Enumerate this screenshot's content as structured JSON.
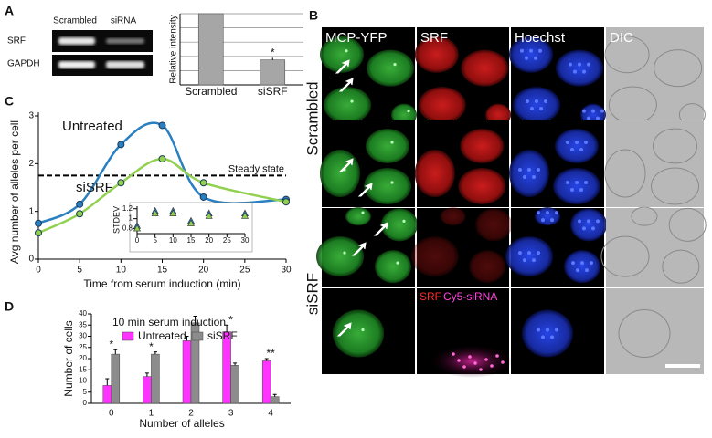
{
  "panels": {
    "a": "A",
    "b": "B",
    "c": "C",
    "d": "D"
  },
  "gel": {
    "lanes": [
      "Scrambled",
      "siRNA"
    ],
    "rows": [
      "SRF",
      "GAPDH"
    ]
  },
  "microscopy": {
    "columns": [
      "MCP-YFP",
      "SRF",
      "Hoechst",
      "DIC"
    ],
    "rows": [
      "Scrambled",
      "siSRF"
    ],
    "overlay": [
      "SRF",
      "Cy5-siRNA"
    ]
  },
  "chart_data": [
    {
      "type": "bar",
      "ylabel": "Relative intensity",
      "categories": [
        "Scrambled",
        "siSRF"
      ],
      "values": [
        100,
        35
      ],
      "errors": [
        0,
        3
      ],
      "color": "#a6a6a6",
      "ylim": [
        0,
        100
      ],
      "yticks": [
        0,
        20,
        40,
        60,
        80,
        100
      ],
      "ytick_labels": false,
      "grid": true,
      "stars": [
        null,
        "*"
      ]
    },
    {
      "type": "line",
      "xlabel": "Time from serum induction (min)",
      "ylabel": "Avg number of alleles per cell",
      "x": [
        0,
        5,
        10,
        15,
        20,
        30
      ],
      "series": [
        {
          "name": "Untreated",
          "color": "#2a7fc1",
          "values": [
            0.75,
            1.15,
            2.4,
            2.8,
            1.3,
            1.25
          ]
        },
        {
          "name": "siSRF",
          "color": "#92d050",
          "values": [
            0.55,
            0.95,
            1.6,
            2.1,
            1.6,
            1.2
          ]
        }
      ],
      "xlim": [
        0,
        30
      ],
      "xticks": [
        0,
        5,
        10,
        15,
        20,
        25,
        30
      ],
      "ylim": [
        0,
        3
      ],
      "yticks": [
        0,
        1,
        2,
        3
      ],
      "smooth": true,
      "legend": "inline",
      "reference_line": {
        "label": "Steady state",
        "value": 1.75
      }
    },
    {
      "type": "scatter",
      "ylabel": "STDEV",
      "x": [
        0,
        5,
        10,
        15,
        20,
        30
      ],
      "series": [
        {
          "color": "#2a7fc1",
          "values": [
            0.85,
            1.15,
            1.15,
            0.95,
            1.1,
            1.1
          ]
        },
        {
          "color": "#92d050",
          "values": [
            0.8,
            1.1,
            1.1,
            0.9,
            1.05,
            1.05
          ]
        }
      ],
      "marker": "triangle",
      "xlim": [
        0,
        30
      ],
      "xticks": [
        0,
        5,
        10,
        15,
        20,
        25,
        30
      ],
      "ylim": [
        0.7,
        1.25
      ],
      "yticks": [
        0.8,
        1,
        1.2
      ]
    },
    {
      "type": "grouped_bar",
      "title": "10 min serum induction",
      "xlabel": "Number of alleles",
      "ylabel": "Number of cells",
      "categories": [
        "0",
        "1",
        "2",
        "3",
        "4"
      ],
      "series": [
        {
          "name": "Untreated",
          "color": "#ff33ff",
          "values": [
            8,
            12,
            28,
            32,
            19
          ],
          "errors": [
            3,
            1.5,
            2,
            3,
            1
          ]
        },
        {
          "name": "siSRF",
          "color": "#8c8c8c",
          "values": [
            22,
            22,
            36,
            17,
            3
          ],
          "errors": [
            2,
            1,
            3,
            1,
            1
          ]
        }
      ],
      "ylim": [
        0,
        40
      ],
      "yticks": [
        0,
        5,
        10,
        15,
        20,
        25,
        30,
        35,
        40
      ],
      "stars": [
        "*",
        "*",
        null,
        "*",
        "**"
      ]
    }
  ]
}
